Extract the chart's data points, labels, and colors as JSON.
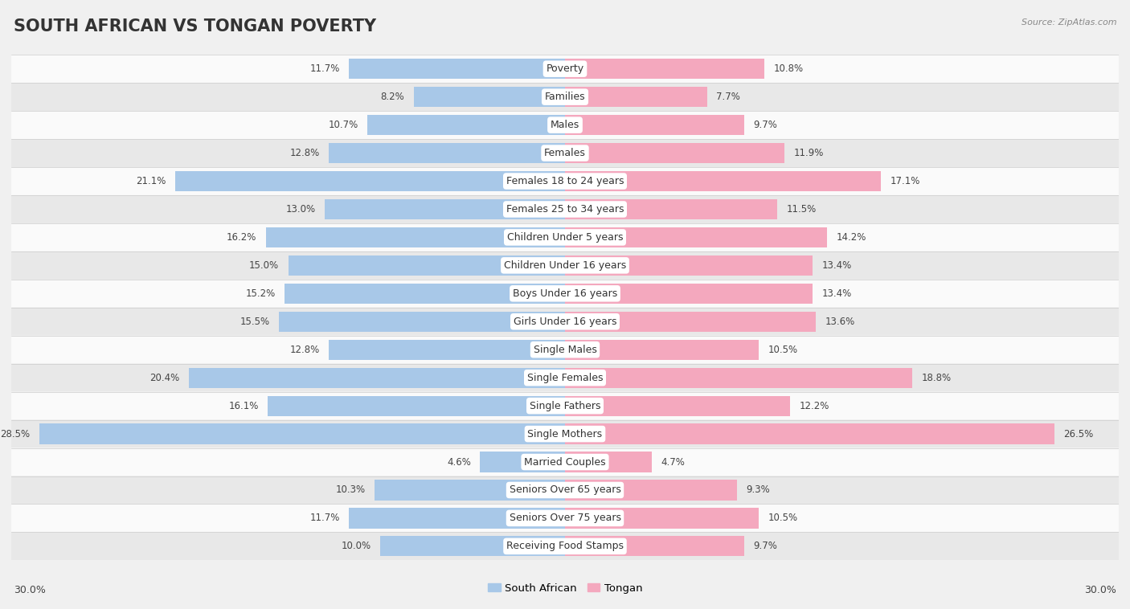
{
  "title": "SOUTH AFRICAN VS TONGAN POVERTY",
  "source": "Source: ZipAtlas.com",
  "categories": [
    "Poverty",
    "Families",
    "Males",
    "Females",
    "Females 18 to 24 years",
    "Females 25 to 34 years",
    "Children Under 5 years",
    "Children Under 16 years",
    "Boys Under 16 years",
    "Girls Under 16 years",
    "Single Males",
    "Single Females",
    "Single Fathers",
    "Single Mothers",
    "Married Couples",
    "Seniors Over 65 years",
    "Seniors Over 75 years",
    "Receiving Food Stamps"
  ],
  "south_african": [
    11.7,
    8.2,
    10.7,
    12.8,
    21.1,
    13.0,
    16.2,
    15.0,
    15.2,
    15.5,
    12.8,
    20.4,
    16.1,
    28.5,
    4.6,
    10.3,
    11.7,
    10.0
  ],
  "tongan": [
    10.8,
    7.7,
    9.7,
    11.9,
    17.1,
    11.5,
    14.2,
    13.4,
    13.4,
    13.6,
    10.5,
    18.8,
    12.2,
    26.5,
    4.7,
    9.3,
    10.5,
    9.7
  ],
  "sa_color": "#A8C8E8",
  "tongan_color": "#F4A8BE",
  "bg_color": "#F0F0F0",
  "row_color_light": "#FAFAFA",
  "row_color_dark": "#E8E8E8",
  "separator_color": "#CCCCCC",
  "max_val": 30.0,
  "axis_label": "30.0%",
  "title_fontsize": 15,
  "label_fontsize": 9,
  "value_fontsize": 8.5,
  "legend_fontsize": 9.5
}
